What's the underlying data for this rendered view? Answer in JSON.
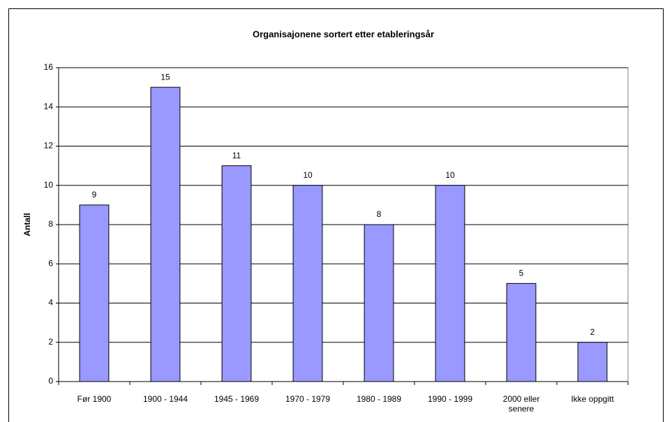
{
  "chart_data": {
    "type": "bar",
    "title": "Organisajonene sortert etter etableringsår",
    "y_label": "Antall",
    "categories": [
      "Før 1900",
      "1900 - 1944",
      "1945 - 1969",
      "1970 - 1979",
      "1980 - 1989",
      "1990 - 1999",
      "2000 eller senere",
      "Ikke oppgitt"
    ],
    "values": [
      9,
      15,
      11,
      10,
      8,
      10,
      5,
      2
    ],
    "color": "#9999ff",
    "ylim": [
      0,
      16
    ],
    "yticks": [
      0,
      2,
      4,
      6,
      8,
      10,
      12,
      14,
      16
    ],
    "grid": true
  }
}
